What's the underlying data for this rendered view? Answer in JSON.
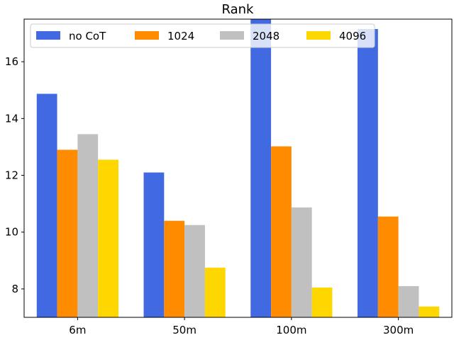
{
  "chart_data": {
    "type": "bar",
    "title": "Rank",
    "xlabel": "",
    "ylabel": "",
    "categories": [
      "6m",
      "50m",
      "100m",
      "300m"
    ],
    "series": [
      {
        "name": "no CoT",
        "color": "#4169e1",
        "values": [
          14.87,
          12.1,
          17.5,
          17.15
        ]
      },
      {
        "name": "1024",
        "color": "#ff8c00",
        "values": [
          12.9,
          10.4,
          13.02,
          10.55
        ]
      },
      {
        "name": "2048",
        "color": "#c0c0c0",
        "values": [
          13.45,
          10.25,
          10.87,
          8.1
        ]
      },
      {
        "name": "4096",
        "color": "#ffd700",
        "values": [
          12.55,
          8.75,
          8.05,
          7.38
        ]
      }
    ],
    "ylim": [
      7.0,
      17.5
    ],
    "yticks": [
      8,
      10,
      12,
      14,
      16
    ],
    "grid": false,
    "legend_position": "top-left, horizontal"
  }
}
